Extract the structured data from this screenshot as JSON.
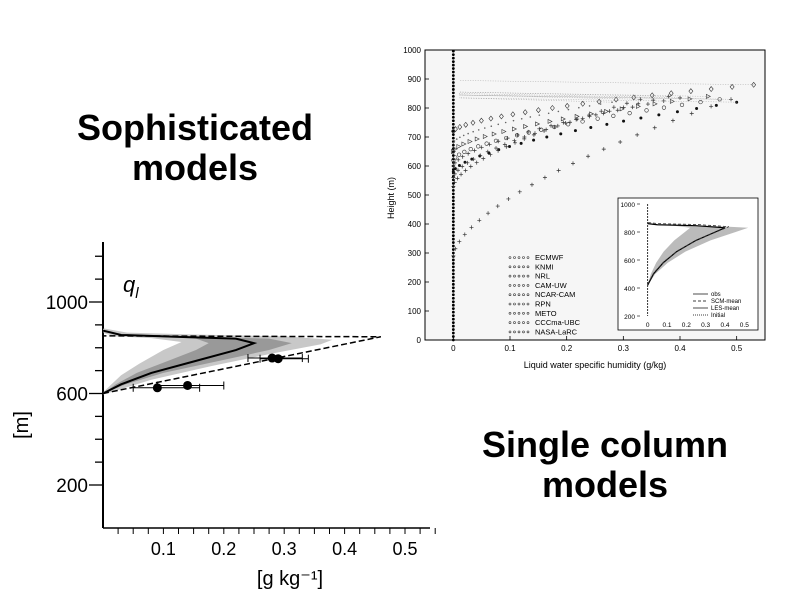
{
  "headings": {
    "sophisticated": "Sophisticated models",
    "single_column": "Single column models"
  },
  "chart_data": [
    {
      "type": "line",
      "title": "",
      "variable_label": "q",
      "variable_subscript": "l",
      "xlabel": "[g kg⁻¹]",
      "ylabel": "[m]",
      "xlim": [
        0,
        0.55
      ],
      "ylim": [
        0,
        1250
      ],
      "x_ticks": [
        "0.1",
        "0.2",
        "0.3",
        "0.4",
        "0.5"
      ],
      "y_ticks": [
        "200",
        "600",
        "1000"
      ],
      "profile": {
        "name": "mean",
        "points": [
          [
            0,
            600
          ],
          [
            0.03,
            640
          ],
          [
            0.08,
            690
          ],
          [
            0.15,
            740
          ],
          [
            0.22,
            790
          ],
          [
            0.25,
            820
          ],
          [
            0.22,
            840
          ],
          [
            0.12,
            848
          ],
          [
            0.03,
            856
          ],
          [
            0,
            875
          ]
        ]
      },
      "envelope": {
        "upper": [
          [
            0,
            595
          ],
          [
            0.08,
            660
          ],
          [
            0.18,
            720
          ],
          [
            0.28,
            775
          ],
          [
            0.36,
            815
          ],
          [
            0.38,
            835
          ],
          [
            0.3,
            850
          ],
          [
            0.15,
            858
          ],
          [
            0.04,
            866
          ],
          [
            0,
            885
          ]
        ],
        "lower": [
          [
            0,
            605
          ],
          [
            0.01,
            630
          ],
          [
            0.03,
            680
          ],
          [
            0.06,
            730
          ],
          [
            0.1,
            790
          ],
          [
            0.13,
            825
          ],
          [
            0.08,
            842
          ],
          [
            0.02,
            850
          ],
          [
            0,
            865
          ]
        ]
      },
      "dashed_bounds": [
        [
          0,
          600
        ],
        [
          0.46,
          848
        ],
        [
          0,
          852
        ]
      ],
      "observations": [
        {
          "x": 0.09,
          "y": 625,
          "xerr_low": 0.04,
          "xerr_high": 0.07
        },
        {
          "x": 0.14,
          "y": 635,
          "xerr_low": 0.05,
          "xerr_high": 0.06
        },
        {
          "x": 0.28,
          "y": 755,
          "xerr_low": 0.04,
          "xerr_high": 0.05
        },
        {
          "x": 0.29,
          "y": 752,
          "xerr_low": 0.03,
          "xerr_high": 0.05
        }
      ]
    },
    {
      "type": "scatter",
      "title": "",
      "xlabel": "Liquid water specific humidity (g/kg)",
      "ylabel": "Height (m)",
      "xlim": [
        -0.05,
        0.55
      ],
      "ylim": [
        0,
        1000
      ],
      "x_ticks": [
        "0",
        "0.1",
        "0.2",
        "0.3",
        "0.4",
        "0.5"
      ],
      "y_ticks": [
        "0",
        "100",
        "200",
        "300",
        "400",
        "500",
        "600",
        "700",
        "800",
        "900",
        "1000"
      ],
      "legend_position": "bottom-left",
      "series": [
        {
          "name": "ECMWF",
          "marker": "diamond",
          "peak_x": 0.53,
          "peak_y": 880,
          "base_y": 720
        },
        {
          "name": "KNMI",
          "marker": "star",
          "peak_x": 0.49,
          "peak_y": 830,
          "base_y": 290
        },
        {
          "name": "NRL",
          "marker": "triangle",
          "peak_x": 0.45,
          "peak_y": 840,
          "base_y": 650
        },
        {
          "name": "CAM-UW",
          "marker": "plus",
          "peak_x": 0.4,
          "peak_y": 835,
          "base_y": 600
        },
        {
          "name": "NCAR-CAM",
          "marker": "dot",
          "peak_x": 0.5,
          "peak_y": 820,
          "base_y": 580
        },
        {
          "name": "RPN",
          "marker": "x",
          "peak_x": 0.38,
          "peak_y": 840,
          "base_y": 560
        },
        {
          "name": "METO",
          "marker": "plus",
          "peak_x": 0.33,
          "peak_y": 830,
          "base_y": 530
        },
        {
          "name": "CCCma-UBC",
          "marker": "dotted",
          "peak_x": 0.28,
          "peak_y": 820,
          "base_y": 680
        },
        {
          "name": "NASA-LaRC",
          "marker": "circle",
          "peak_x": 0.47,
          "peak_y": 830,
          "base_y": 620
        }
      ],
      "inset": {
        "xlim": [
          -0.05,
          0.55
        ],
        "ylim": [
          200,
          1000
        ],
        "x_ticks": [
          "0",
          "0.1",
          "0.2",
          "0.3",
          "0.4",
          "0.5"
        ],
        "y_ticks": [
          "200",
          "400",
          "600",
          "800",
          "1000"
        ],
        "legend": [
          "obs",
          "SCM-mean",
          "LES-mean",
          "Initial"
        ],
        "mean_profile": [
          [
            0,
            420
          ],
          [
            0.03,
            500
          ],
          [
            0.08,
            580
          ],
          [
            0.15,
            660
          ],
          [
            0.25,
            740
          ],
          [
            0.35,
            800
          ],
          [
            0.4,
            830
          ],
          [
            0.25,
            845
          ],
          [
            0.05,
            852
          ],
          [
            0,
            860
          ]
        ]
      }
    }
  ]
}
